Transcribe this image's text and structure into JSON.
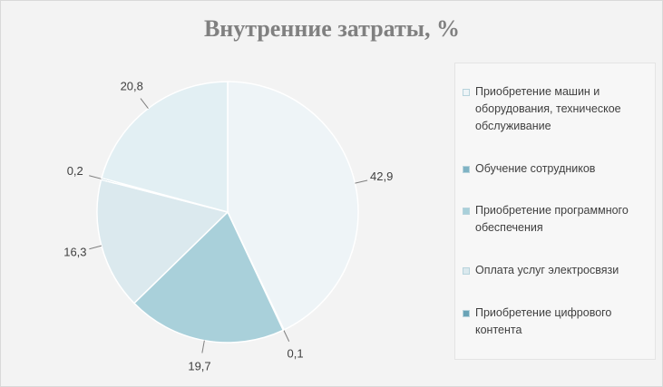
{
  "chart_data": {
    "type": "pie",
    "title": "Внутренние затраты, %",
    "categories": [
      "Приобретение машин и оборудования, техническое обслуживание",
      "Обучение сотрудников",
      "Приобретение программного обеспечения",
      "Оплата услуг электросвязи",
      "Приобретение цифрового контента",
      null
    ],
    "values": [
      42.9,
      0.1,
      19.7,
      16.3,
      0.2,
      20.8
    ],
    "value_labels": [
      "42,9",
      "0,1",
      "19,7",
      "16,3",
      "0,2",
      "20,8"
    ],
    "colors": [
      "#eef4f7",
      "#7fb3c4",
      "#a9d0da",
      "#dbe9ee",
      "#6aa3b6",
      "#e2eff3"
    ],
    "legend": "right"
  }
}
